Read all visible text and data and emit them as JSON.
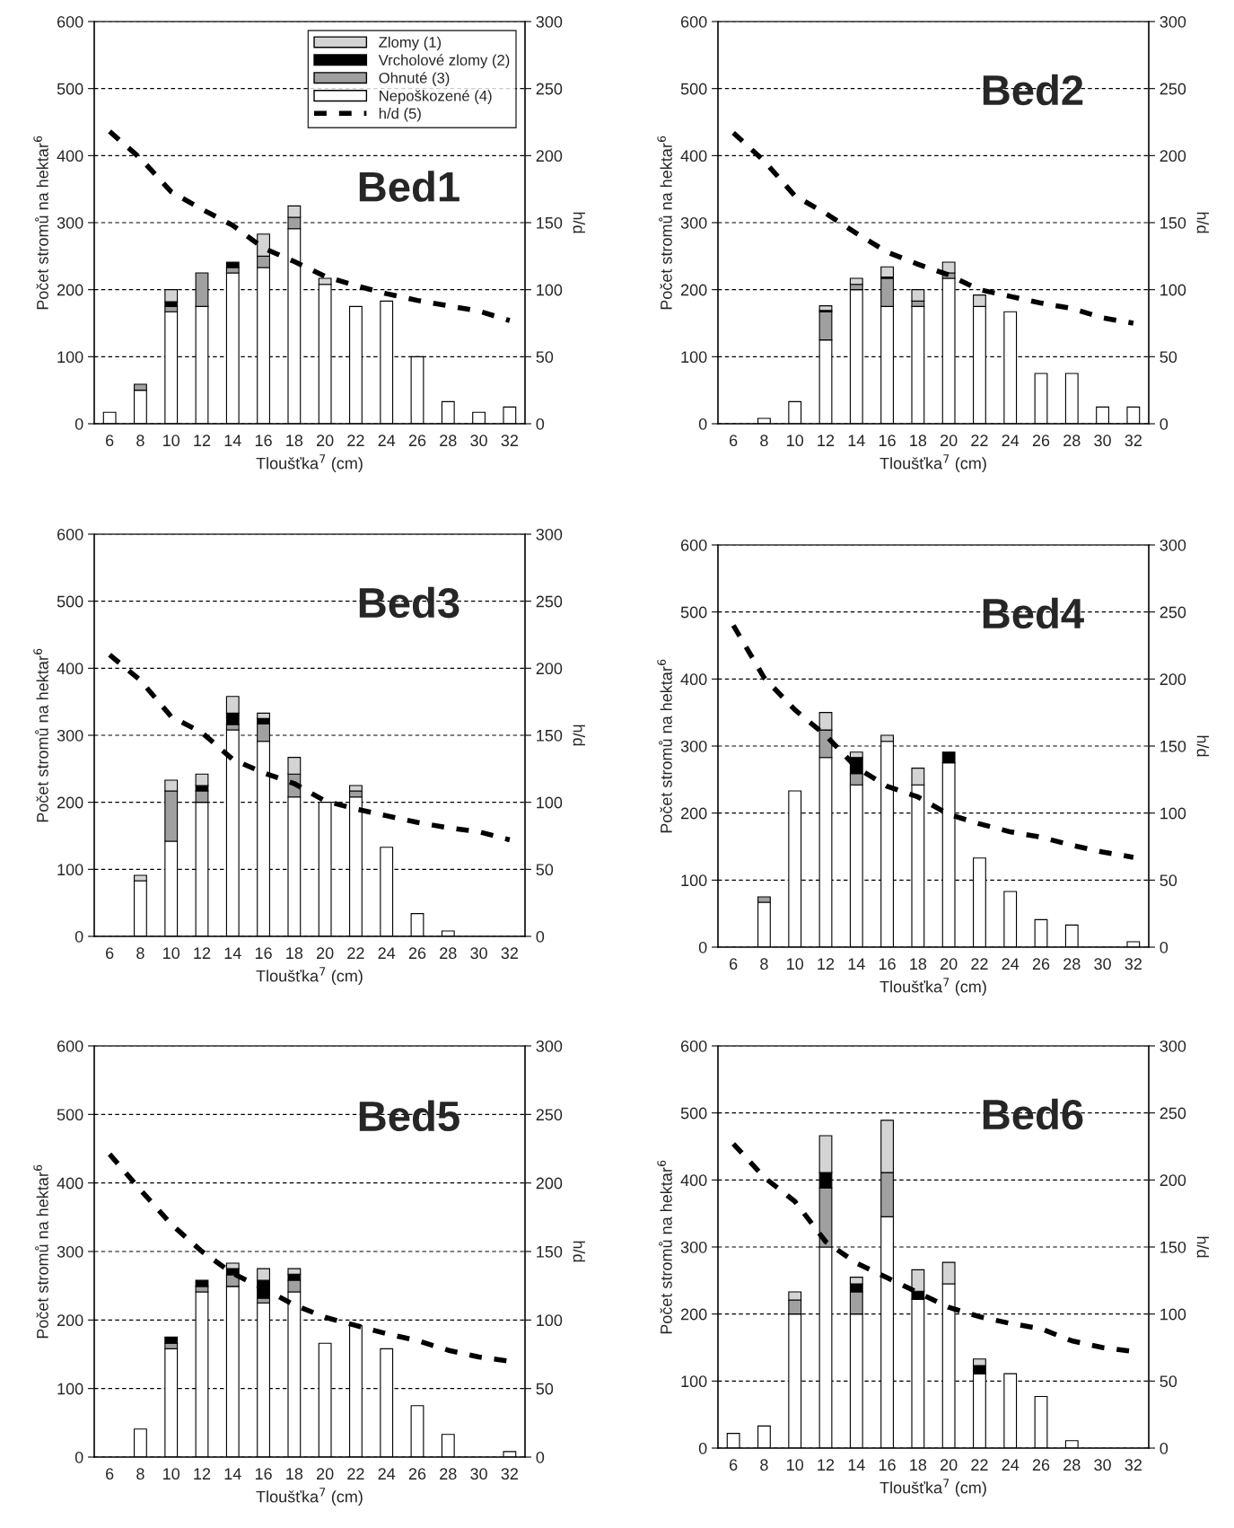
{
  "chart_data": [
    {
      "type": "bar",
      "stacked": true,
      "title": "Bed1",
      "xlabel": "Tloušťka$^{7}$ (cm)",
      "ylabel": "Počet stromů na hektar$^{6}$",
      "y2label": "h/d",
      "categories": [
        "6",
        "8",
        "10",
        "12",
        "14",
        "16",
        "18",
        "20",
        "22",
        "24",
        "26",
        "28",
        "30",
        "32"
      ],
      "ylim": [
        0,
        600
      ],
      "yticks": [
        0,
        100,
        200,
        300,
        400,
        500,
        600
      ],
      "y2lim": [
        0,
        300
      ],
      "y2ticks": [
        0,
        50,
        100,
        150,
        200,
        250,
        300
      ],
      "grid": "y",
      "legend": "top right",
      "series": [
        {
          "name": "Nepoškozené (4)",
          "color": "#ffffff",
          "values": [
            17,
            50,
            167,
            175,
            225,
            233,
            291,
            208,
            175,
            183,
            100,
            33,
            17,
            25
          ]
        },
        {
          "name": "Ohnuté (3)",
          "color": "#a0a0a0",
          "values": [
            0,
            9,
            8,
            50,
            8,
            17,
            17,
            0,
            0,
            0,
            0,
            0,
            0,
            0
          ]
        },
        {
          "name": "Vrcholové zlomy (2)",
          "color": "#000000",
          "values": [
            0,
            0,
            7,
            0,
            8,
            0,
            0,
            0,
            0,
            0,
            0,
            0,
            0,
            0
          ]
        },
        {
          "name": "Zlomy (1)",
          "color": "#d4d4d4",
          "values": [
            0,
            0,
            18,
            0,
            0,
            33,
            17,
            9,
            0,
            0,
            0,
            0,
            0,
            0
          ]
        },
        {
          "name": "h/d (5)",
          "type": "line",
          "axis": "y2",
          "line_style": "dashed",
          "marker": "none",
          "color": "#000000",
          "values": [
            218,
            198,
            173,
            160,
            148,
            131,
            121,
            110,
            103,
            97,
            92,
            88,
            84,
            77
          ]
        }
      ]
    },
    {
      "type": "bar",
      "stacked": true,
      "title": "Bed2",
      "xlabel": "Tloušťka$^{7}$ (cm)",
      "ylabel": "Počet stromů na hektar$^{6}$",
      "y2label": "h/d",
      "categories": [
        "6",
        "8",
        "10",
        "12",
        "14",
        "16",
        "18",
        "20",
        "22",
        "24",
        "26",
        "28",
        "30",
        "32"
      ],
      "ylim": [
        0,
        600
      ],
      "yticks": [
        0,
        100,
        200,
        300,
        400,
        500,
        600
      ],
      "y2lim": [
        0,
        300
      ],
      "y2ticks": [
        0,
        50,
        100,
        150,
        200,
        250,
        300
      ],
      "grid": "y",
      "series": [
        {
          "color": "#ffffff",
          "values": [
            0,
            8,
            33,
            125,
            200,
            175,
            175,
            217,
            175,
            167,
            75,
            75,
            25,
            25
          ]
        },
        {
          "color": "#a0a0a0",
          "values": [
            0,
            0,
            0,
            42,
            8,
            42,
            8,
            8,
            0,
            0,
            0,
            0,
            0,
            0
          ]
        },
        {
          "color": "#000000",
          "values": [
            0,
            0,
            0,
            2,
            0,
            2,
            0,
            0,
            0,
            0,
            0,
            0,
            0,
            0
          ]
        },
        {
          "color": "#d4d4d4",
          "values": [
            0,
            0,
            0,
            7,
            9,
            15,
            17,
            16,
            17,
            0,
            0,
            0,
            0,
            0
          ]
        },
        {
          "type": "line",
          "axis": "y2",
          "line_style": "dashed",
          "marker": "none",
          "color": "#000000",
          "values": [
            217,
            196,
            170,
            157,
            142,
            128,
            119,
            111,
            100,
            95,
            90,
            86,
            79,
            75
          ]
        }
      ]
    },
    {
      "type": "bar",
      "stacked": true,
      "title": "Bed3",
      "xlabel": "Tloušťka$^{7}$ (cm)",
      "ylabel": "Počet stromů na hektar$^{6}$",
      "y2label": "h/d",
      "categories": [
        "6",
        "8",
        "10",
        "12",
        "14",
        "16",
        "18",
        "20",
        "22",
        "24",
        "26",
        "28",
        "30",
        "32"
      ],
      "ylim": [
        0,
        600
      ],
      "yticks": [
        0,
        100,
        200,
        300,
        400,
        500,
        600
      ],
      "y2lim": [
        0,
        300
      ],
      "y2ticks": [
        0,
        50,
        100,
        150,
        200,
        250,
        300
      ],
      "grid": "y",
      "series": [
        {
          "color": "#ffffff",
          "values": [
            0,
            83,
            142,
            200,
            308,
            291,
            208,
            200,
            208,
            133,
            34,
            8,
            0,
            0
          ]
        },
        {
          "color": "#a0a0a0",
          "values": [
            0,
            0,
            75,
            17,
            8,
            26,
            34,
            0,
            9,
            0,
            0,
            0,
            0,
            0
          ]
        },
        {
          "color": "#000000",
          "values": [
            0,
            0,
            0,
            8,
            17,
            8,
            0,
            0,
            0,
            0,
            0,
            0,
            0,
            0
          ]
        },
        {
          "color": "#d4d4d4",
          "values": [
            0,
            8,
            16,
            17,
            25,
            8,
            25,
            0,
            8,
            0,
            0,
            0,
            0,
            0
          ]
        },
        {
          "type": "line",
          "axis": "y2",
          "line_style": "dashed",
          "marker": "none",
          "color": "#000000",
          "values": [
            210,
            191,
            164,
            152,
            132,
            122,
            114,
            101,
            95,
            90,
            85,
            81,
            78,
            72
          ]
        }
      ]
    },
    {
      "type": "bar",
      "stacked": true,
      "title": "Bed4",
      "xlabel": "Tloušťka$^{7}$ (cm)",
      "ylabel": "Počet stromů na hektar$^{6}$",
      "y2label": "h/d",
      "categories": [
        "6",
        "8",
        "10",
        "12",
        "14",
        "16",
        "18",
        "20",
        "22",
        "24",
        "26",
        "28",
        "30",
        "32"
      ],
      "ylim": [
        0,
        600
      ],
      "yticks": [
        0,
        100,
        200,
        300,
        400,
        500,
        600
      ],
      "y2lim": [
        0,
        300
      ],
      "y2ticks": [
        0,
        50,
        100,
        150,
        200,
        250,
        300
      ],
      "grid": "y",
      "series": [
        {
          "color": "#ffffff",
          "values": [
            0,
            67,
            233,
            283,
            242,
            307,
            242,
            275,
            133,
            83,
            41,
            33,
            0,
            8
          ]
        },
        {
          "color": "#a0a0a0",
          "values": [
            0,
            8,
            0,
            41,
            17,
            0,
            0,
            0,
            0,
            0,
            0,
            0,
            0,
            0
          ]
        },
        {
          "color": "#000000",
          "values": [
            0,
            0,
            0,
            0,
            24,
            0,
            0,
            16,
            0,
            0,
            0,
            0,
            0,
            0
          ]
        },
        {
          "color": "#d4d4d4",
          "values": [
            0,
            0,
            0,
            26,
            8,
            9,
            25,
            0,
            0,
            0,
            0,
            0,
            0,
            0
          ]
        },
        {
          "type": "line",
          "axis": "y2",
          "line_style": "dashed",
          "marker": "none",
          "color": "#000000",
          "values": [
            240,
            201,
            177,
            158,
            134,
            120,
            112,
            99,
            92,
            86,
            82,
            76,
            71,
            67
          ]
        }
      ]
    },
    {
      "type": "bar",
      "stacked": true,
      "title": "Bed5",
      "xlabel": "Tloušťka$^{7}$ (cm)",
      "ylabel": "Počet stromů na hektar$^{6}$",
      "y2label": "h/d",
      "categories": [
        "6",
        "8",
        "10",
        "12",
        "14",
        "16",
        "18",
        "20",
        "22",
        "24",
        "26",
        "28",
        "30",
        "32"
      ],
      "ylim": [
        0,
        600
      ],
      "yticks": [
        0,
        100,
        200,
        300,
        400,
        500,
        600
      ],
      "y2lim": [
        0,
        300
      ],
      "y2ticks": [
        0,
        50,
        100,
        150,
        200,
        250,
        300
      ],
      "grid": "y",
      "series": [
        {
          "color": "#ffffff",
          "values": [
            0,
            41,
            158,
            241,
            249,
            225,
            241,
            166,
            192,
            158,
            75,
            33,
            0,
            8
          ]
        },
        {
          "color": "#a0a0a0",
          "values": [
            0,
            0,
            8,
            8,
            17,
            7,
            17,
            0,
            0,
            0,
            0,
            0,
            0,
            0
          ]
        },
        {
          "color": "#000000",
          "values": [
            0,
            0,
            9,
            9,
            9,
            26,
            9,
            0,
            0,
            0,
            0,
            0,
            0,
            0
          ]
        },
        {
          "color": "#d4d4d4",
          "values": [
            0,
            0,
            0,
            0,
            8,
            17,
            8,
            0,
            0,
            0,
            0,
            0,
            0,
            0
          ]
        },
        {
          "type": "line",
          "axis": "y2",
          "line_style": "dashed",
          "marker": "none",
          "color": "#000000",
          "values": [
            221,
            195,
            170,
            150,
            134,
            123,
            111,
            102,
            96,
            90,
            85,
            78,
            73,
            70
          ]
        }
      ]
    },
    {
      "type": "bar",
      "stacked": true,
      "title": "Bed6",
      "xlabel": "Tloušťka$^{7}$ (cm)",
      "ylabel": "Počet stromů na hektar$^{6}$",
      "y2label": "h/d",
      "categories": [
        "6",
        "8",
        "10",
        "12",
        "14",
        "16",
        "18",
        "20",
        "22",
        "24",
        "26",
        "28",
        "30",
        "32"
      ],
      "ylim": [
        0,
        600
      ],
      "yticks": [
        0,
        100,
        200,
        300,
        400,
        500,
        600
      ],
      "y2lim": [
        0,
        300
      ],
      "y2ticks": [
        0,
        50,
        100,
        150,
        200,
        250,
        300
      ],
      "grid": "y",
      "series": [
        {
          "color": "#ffffff",
          "values": [
            22,
            33,
            200,
            300,
            200,
            345,
            222,
            245,
            111,
            111,
            77,
            11,
            0,
            0
          ]
        },
        {
          "color": "#a0a0a0",
          "values": [
            0,
            0,
            21,
            88,
            33,
            66,
            0,
            0,
            0,
            0,
            0,
            0,
            0,
            0
          ]
        },
        {
          "color": "#000000",
          "values": [
            0,
            0,
            0,
            23,
            12,
            0,
            12,
            0,
            12,
            0,
            0,
            0,
            0,
            0
          ]
        },
        {
          "color": "#d4d4d4",
          "values": [
            0,
            0,
            12,
            55,
            10,
            78,
            32,
            32,
            10,
            0,
            0,
            0,
            0,
            0
          ]
        },
        {
          "type": "line",
          "axis": "y2",
          "line_style": "dashed",
          "marker": "none",
          "color": "#000000",
          "values": [
            227,
            202,
            184,
            154,
            138,
            127,
            116,
            105,
            98,
            93,
            89,
            80,
            75,
            72
          ]
        }
      ]
    }
  ]
}
